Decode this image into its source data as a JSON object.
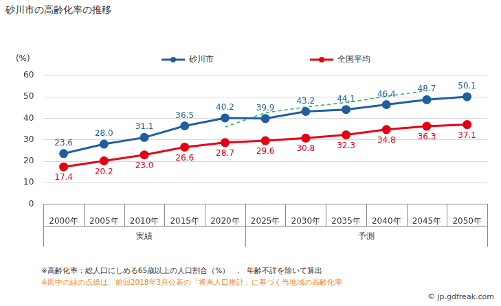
{
  "chart_data": {
    "type": "line",
    "title": "砂川市の高齢化率の推移",
    "ylabel": "(%)",
    "categories": [
      "2000年",
      "2005年",
      "2010年",
      "2015年",
      "2020年",
      "2025年",
      "2030年",
      "2035年",
      "2040年",
      "2045年",
      "2050年"
    ],
    "groups": [
      {
        "label": "実績",
        "from": "2000年",
        "to": "2020年"
      },
      {
        "label": "予測",
        "from": "2025年",
        "to": "2050年"
      }
    ],
    "series": [
      {
        "name": "砂川市",
        "color": "#1f5fa0",
        "marker": "circle",
        "values": [
          23.6,
          28.0,
          31.1,
          36.5,
          40.2,
          39.9,
          43.2,
          44.1,
          46.4,
          48.7,
          50.1
        ],
        "value_labels": [
          "23.6",
          "28.0",
          "31.1",
          "36.5",
          "40.2",
          "39.9",
          "43.2",
          "44.1",
          "46.4",
          "48.7",
          "50.1"
        ]
      },
      {
        "name": "全国平均",
        "color": "#e60012",
        "marker": "circle",
        "values": [
          17.4,
          20.2,
          23.0,
          26.6,
          28.7,
          29.6,
          30.8,
          32.3,
          34.8,
          36.3,
          37.1
        ],
        "value_labels": [
          "17.4",
          "20.2",
          "23.0",
          "26.6",
          "28.7",
          "29.6",
          "30.8",
          "32.3",
          "34.8",
          "36.3",
          "37.1"
        ]
      },
      {
        "color": "#2eb84b",
        "line_style": "dashed",
        "marker": "none",
        "data_labels": false,
        "values": [
          null,
          null,
          null,
          null,
          36.0,
          42.6,
          45.3,
          47.4,
          50.3,
          52.9,
          null
        ]
      }
    ],
    "ylim": [
      0,
      60
    ],
    "yticks": [
      0,
      10,
      20,
      30,
      40,
      50,
      60
    ],
    "grid": true,
    "data_labels": true,
    "notes": [
      {
        "text": "※高齢化率：総人口にしめる65歳以上の人口割合（%）　,　年齢不詳を除いて算出",
        "color": "#333333"
      },
      {
        "text": "※図中の緑の点線は、前回2018年3月公表の「将来人口推計」に基づく当地域の高齢化率",
        "color": "#f08c1e"
      }
    ],
    "source": "© jp.gdfreak.com"
  }
}
